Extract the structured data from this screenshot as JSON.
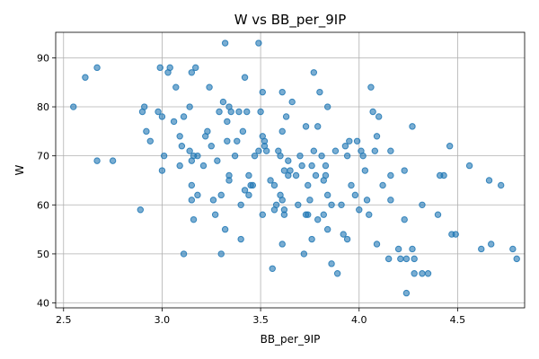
{
  "chart_data": {
    "type": "scatter",
    "title": "W vs BB_per_9IP",
    "xlabel": "BB_per_9IP",
    "ylabel": "W",
    "xlim": [
      2.46,
      4.84
    ],
    "ylim": [
      39,
      95.2
    ],
    "xticks": [
      2.5,
      3.0,
      3.5,
      4.0,
      4.5
    ],
    "xtick_labels": [
      "2.5",
      "3.0",
      "3.5",
      "4.0",
      "4.5"
    ],
    "yticks": [
      40,
      50,
      60,
      70,
      80,
      90
    ],
    "ytick_labels": [
      "40",
      "50",
      "60",
      "70",
      "80",
      "90"
    ],
    "grid": true,
    "legend": "none",
    "marker_color": "#1f77b4",
    "series": [
      {
        "points": [
          [
            2.55,
            80
          ],
          [
            2.61,
            86
          ],
          [
            2.67,
            88
          ],
          [
            2.67,
            69
          ],
          [
            2.75,
            69
          ],
          [
            2.89,
            59
          ],
          [
            2.9,
            79
          ],
          [
            2.91,
            80
          ],
          [
            2.92,
            75
          ],
          [
            2.94,
            73
          ],
          [
            2.98,
            79
          ],
          [
            2.99,
            88
          ],
          [
            3.0,
            67
          ],
          [
            3.0,
            78
          ],
          [
            3.01,
            70
          ],
          [
            3.03,
            87
          ],
          [
            3.04,
            88
          ],
          [
            3.06,
            77
          ],
          [
            3.07,
            84
          ],
          [
            3.09,
            74
          ],
          [
            3.09,
            68
          ],
          [
            3.11,
            78
          ],
          [
            3.1,
            72
          ],
          [
            3.11,
            50
          ],
          [
            3.14,
            80
          ],
          [
            3.14,
            71
          ],
          [
            3.15,
            69
          ],
          [
            3.15,
            61
          ],
          [
            3.15,
            64
          ],
          [
            3.16,
            57
          ],
          [
            3.16,
            70
          ],
          [
            3.15,
            87
          ],
          [
            3.17,
            88
          ],
          [
            3.18,
            62
          ],
          [
            3.18,
            70
          ],
          [
            3.21,
            68
          ],
          [
            3.22,
            74
          ],
          [
            3.23,
            75
          ],
          [
            3.24,
            84
          ],
          [
            3.25,
            72
          ],
          [
            3.26,
            61
          ],
          [
            3.27,
            58
          ],
          [
            3.28,
            69
          ],
          [
            3.29,
            79
          ],
          [
            3.3,
            62
          ],
          [
            3.3,
            50
          ],
          [
            3.31,
            81
          ],
          [
            3.32,
            93
          ],
          [
            3.32,
            55
          ],
          [
            3.33,
            73
          ],
          [
            3.34,
            65
          ],
          [
            3.34,
            66
          ],
          [
            3.33,
            77
          ],
          [
            3.34,
            80
          ],
          [
            3.35,
            79
          ],
          [
            3.37,
            70
          ],
          [
            3.38,
            73
          ],
          [
            3.39,
            79
          ],
          [
            3.4,
            53
          ],
          [
            3.4,
            60
          ],
          [
            3.41,
            75
          ],
          [
            3.42,
            86
          ],
          [
            3.42,
            63
          ],
          [
            3.43,
            79
          ],
          [
            3.44,
            66
          ],
          [
            3.44,
            62
          ],
          [
            3.45,
            64
          ],
          [
            3.46,
            64
          ],
          [
            3.47,
            70
          ],
          [
            3.49,
            93
          ],
          [
            3.49,
            71
          ],
          [
            3.5,
            79
          ],
          [
            3.51,
            83
          ],
          [
            3.51,
            74
          ],
          [
            3.52,
            72
          ],
          [
            3.52,
            73
          ],
          [
            3.51,
            58
          ],
          [
            3.53,
            71
          ],
          [
            3.55,
            65
          ],
          [
            3.56,
            47
          ],
          [
            3.57,
            59
          ],
          [
            3.57,
            64
          ],
          [
            3.58,
            60
          ],
          [
            3.59,
            71
          ],
          [
            3.6,
            70
          ],
          [
            3.6,
            62
          ],
          [
            3.61,
            52
          ],
          [
            3.62,
            58
          ],
          [
            3.62,
            59
          ],
          [
            3.61,
            61
          ],
          [
            3.61,
            75
          ],
          [
            3.61,
            83
          ],
          [
            3.62,
            67
          ],
          [
            3.63,
            78
          ],
          [
            3.64,
            66
          ],
          [
            3.65,
            67
          ],
          [
            3.64,
            69
          ],
          [
            3.66,
            81
          ],
          [
            3.68,
            66
          ],
          [
            3.69,
            60
          ],
          [
            3.7,
            70
          ],
          [
            3.71,
            68
          ],
          [
            3.72,
            50
          ],
          [
            3.73,
            58
          ],
          [
            3.73,
            76
          ],
          [
            3.74,
            58
          ],
          [
            3.74,
            64
          ],
          [
            3.75,
            61
          ],
          [
            3.76,
            53
          ],
          [
            3.76,
            68
          ],
          [
            3.77,
            71
          ],
          [
            3.77,
            87
          ],
          [
            3.78,
            66
          ],
          [
            3.79,
            76
          ],
          [
            3.79,
            57
          ],
          [
            3.8,
            83
          ],
          [
            3.81,
            70
          ],
          [
            3.82,
            65
          ],
          [
            3.82,
            58
          ],
          [
            3.83,
            66
          ],
          [
            3.83,
            68
          ],
          [
            3.84,
            80
          ],
          [
            3.84,
            62
          ],
          [
            3.84,
            55
          ],
          [
            3.86,
            48
          ],
          [
            3.86,
            60
          ],
          [
            3.88,
            71
          ],
          [
            3.89,
            46
          ],
          [
            3.91,
            60
          ],
          [
            3.92,
            54
          ],
          [
            3.93,
            72
          ],
          [
            3.94,
            70
          ],
          [
            3.94,
            53
          ],
          [
            3.95,
            73
          ],
          [
            3.96,
            64
          ],
          [
            3.98,
            62
          ],
          [
            3.99,
            73
          ],
          [
            4.0,
            59
          ],
          [
            4.01,
            71
          ],
          [
            4.02,
            70
          ],
          [
            4.03,
            67
          ],
          [
            4.04,
            61
          ],
          [
            4.05,
            58
          ],
          [
            4.06,
            84
          ],
          [
            4.07,
            79
          ],
          [
            4.08,
            71
          ],
          [
            4.09,
            74
          ],
          [
            4.09,
            52
          ],
          [
            4.1,
            78
          ],
          [
            4.12,
            64
          ],
          [
            4.15,
            49
          ],
          [
            4.16,
            66
          ],
          [
            4.16,
            61
          ],
          [
            4.16,
            71
          ],
          [
            4.2,
            51
          ],
          [
            4.21,
            49
          ],
          [
            4.23,
            57
          ],
          [
            4.23,
            67
          ],
          [
            4.24,
            42
          ],
          [
            4.24,
            49
          ],
          [
            4.27,
            51
          ],
          [
            4.27,
            76
          ],
          [
            4.28,
            49
          ],
          [
            4.28,
            46
          ],
          [
            4.32,
            60
          ],
          [
            4.32,
            46
          ],
          [
            4.35,
            46
          ],
          [
            4.4,
            58
          ],
          [
            4.41,
            66
          ],
          [
            4.43,
            66
          ],
          [
            4.46,
            72
          ],
          [
            4.47,
            54
          ],
          [
            4.49,
            54
          ],
          [
            4.56,
            68
          ],
          [
            4.62,
            51
          ],
          [
            4.66,
            65
          ],
          [
            4.67,
            52
          ],
          [
            4.72,
            64
          ],
          [
            4.78,
            51
          ],
          [
            4.8,
            49
          ]
        ]
      }
    ]
  }
}
